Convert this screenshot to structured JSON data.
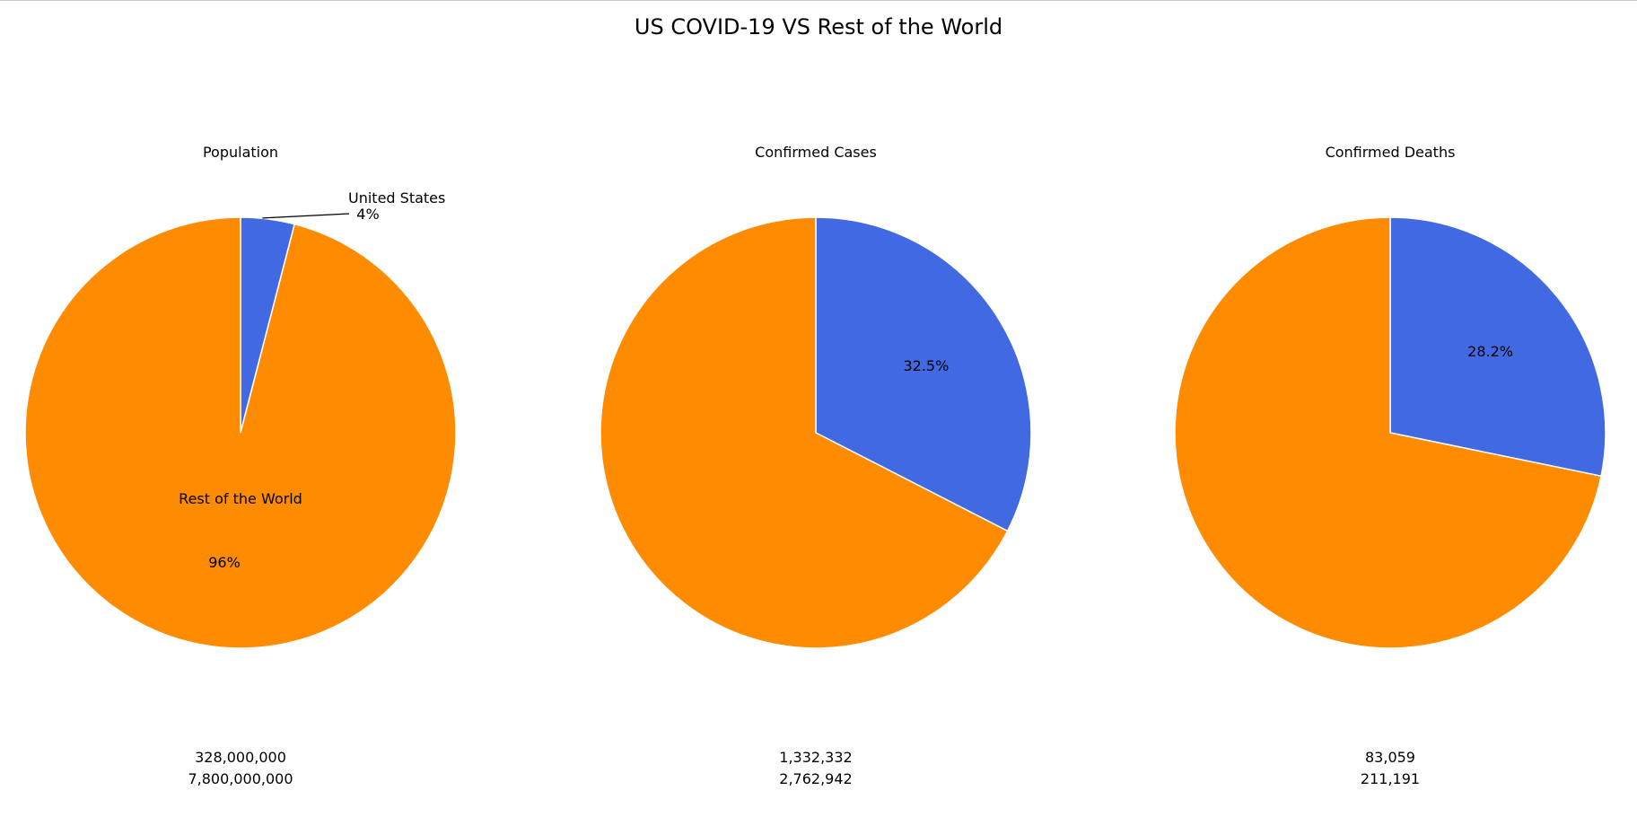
{
  "title": "US COVID-19 VS Rest of the World",
  "colors": {
    "united_states": "#4169e1",
    "rest_of_world": "#ff8c00",
    "edge": "#ffffff"
  },
  "chart_data": [
    {
      "type": "pie",
      "title": "Population",
      "slices": [
        {
          "label": "United States",
          "value": 328000000,
          "pct_label": "4%",
          "color": "#4169e1"
        },
        {
          "label": "Rest of the World",
          "value": 7800000000,
          "pct_label": "96%",
          "color": "#ff8c00"
        }
      ],
      "start_angle_deg": 90,
      "direction": "clockwise",
      "value_labels": [
        "328,000,000",
        "7,800,000,000"
      ]
    },
    {
      "type": "pie",
      "title": "Confirmed Cases",
      "slices": [
        {
          "label": "",
          "value": 1332332,
          "pct_label": "32.5%",
          "color": "#4169e1"
        },
        {
          "label": "",
          "value": 2762942,
          "pct_label": "",
          "color": "#ff8c00"
        }
      ],
      "start_angle_deg": 90,
      "direction": "clockwise",
      "value_labels": [
        "1,332,332",
        "2,762,942"
      ]
    },
    {
      "type": "pie",
      "title": "Confirmed Deaths",
      "slices": [
        {
          "label": "",
          "value": 83059,
          "pct_label": "28.2%",
          "color": "#4169e1"
        },
        {
          "label": "",
          "value": 211191,
          "pct_label": "",
          "color": "#ff8c00"
        }
      ],
      "start_angle_deg": 90,
      "direction": "clockwise",
      "value_labels": [
        "83,059",
        "211,191"
      ]
    }
  ]
}
